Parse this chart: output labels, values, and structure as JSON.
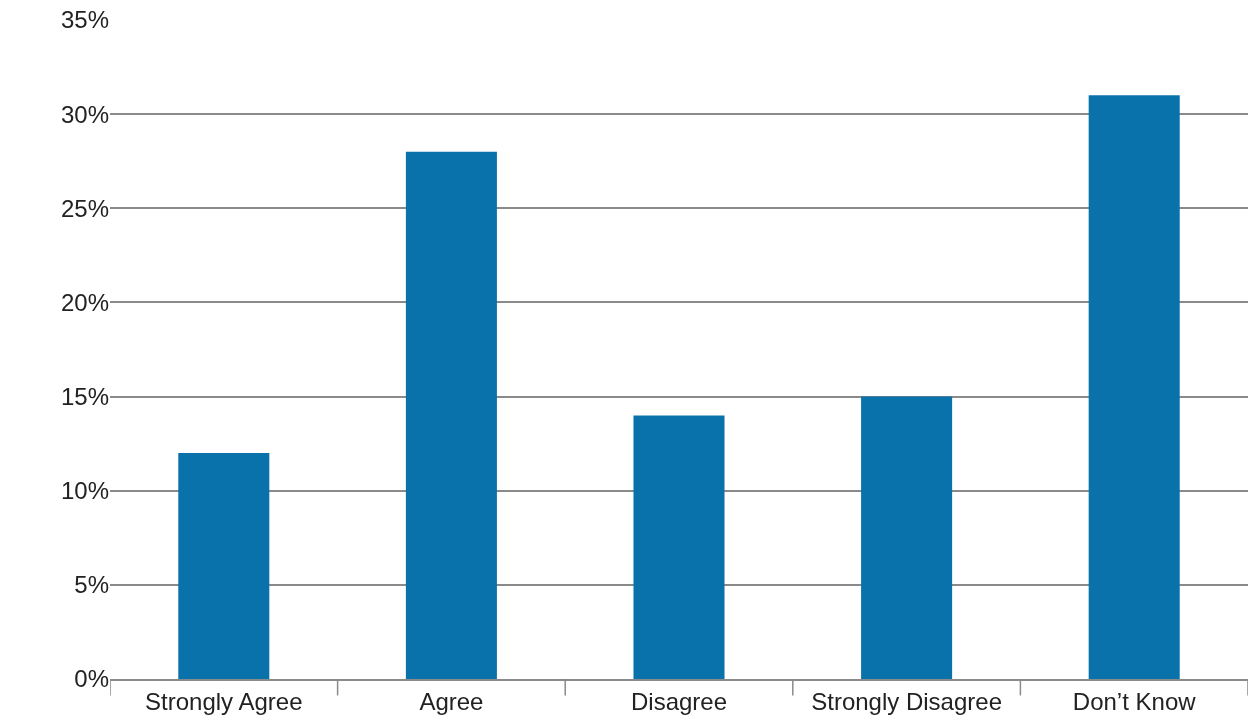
{
  "chart_data": {
    "type": "bar",
    "categories": [
      "Strongly Agree",
      "Agree",
      "Disagree",
      "Strongly Disagree",
      "Don’t Know"
    ],
    "values": [
      12,
      28,
      14,
      15,
      31
    ],
    "color": "#0a72ab",
    "ylim": [
      0,
      35
    ],
    "yticks": [
      {
        "value": 0,
        "label": "0%"
      },
      {
        "value": 5,
        "label": "5%"
      },
      {
        "value": 10,
        "label": "10%"
      },
      {
        "value": 15,
        "label": "15%"
      },
      {
        "value": 20,
        "label": "20%"
      },
      {
        "value": 25,
        "label": "25%"
      },
      {
        "value": 30,
        "label": "30%"
      },
      {
        "value": 35,
        "label": "35%"
      }
    ],
    "grid": "y"
  }
}
